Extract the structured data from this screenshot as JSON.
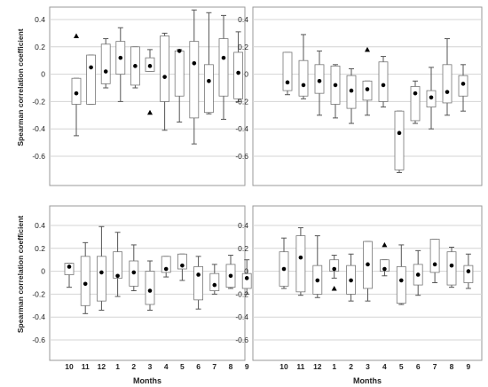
{
  "chart_data": [
    {
      "type": "boxplot",
      "ylabel": "Spearman correlation coefficient",
      "xlabel": "",
      "ylim": [
        -0.8,
        0.5
      ],
      "yticks": [
        0.4,
        0.2,
        0.0,
        -0.2,
        -0.4,
        -0.6
      ],
      "ytick_labels": [
        "0.4",
        "0.2",
        "0",
        "-0.2",
        "-0.4",
        "-0.6"
      ],
      "grid": true,
      "categories": [
        "10",
        "11",
        "12",
        "1",
        "2",
        "3",
        "4",
        "5",
        "6",
        "7",
        "8",
        "9"
      ],
      "show_category_labels": false,
      "boxes": [
        {
          "whisker_low": -0.45,
          "q1": -0.22,
          "q3": -0.03,
          "whisker_high": -0.03,
          "mean": -0.14,
          "outliers": [
            0.28
          ]
        },
        {
          "whisker_low": -0.22,
          "q1": -0.22,
          "q3": 0.14,
          "whisker_high": 0.14,
          "mean": 0.05
        },
        {
          "whisker_low": -0.1,
          "q1": -0.07,
          "q3": 0.22,
          "whisker_high": 0.26,
          "mean": 0.02
        },
        {
          "whisker_low": -0.2,
          "q1": 0.0,
          "q3": 0.24,
          "whisker_high": 0.34,
          "mean": 0.12
        },
        {
          "whisker_low": -0.1,
          "q1": -0.08,
          "q3": 0.2,
          "whisker_high": 0.2,
          "mean": 0.06
        },
        {
          "whisker_low": 0.02,
          "q1": 0.02,
          "q3": 0.12,
          "whisker_high": 0.18,
          "mean": 0.06,
          "outliers": [
            -0.28
          ]
        },
        {
          "whisker_low": -0.41,
          "q1": -0.2,
          "q3": 0.28,
          "whisker_high": 0.3,
          "mean": -0.02
        },
        {
          "whisker_low": -0.35,
          "q1": -0.16,
          "q3": 0.17,
          "whisker_high": 0.18,
          "mean": 0.17
        },
        {
          "whisker_low": -0.51,
          "q1": -0.32,
          "q3": 0.24,
          "whisker_high": 0.47,
          "mean": 0.08
        },
        {
          "whisker_low": -0.29,
          "q1": -0.28,
          "q3": 0.07,
          "whisker_high": 0.45,
          "mean": -0.05
        },
        {
          "whisker_low": -0.33,
          "q1": -0.16,
          "q3": 0.26,
          "whisker_high": 0.43,
          "mean": 0.12
        },
        {
          "whisker_low": -0.2,
          "q1": -0.18,
          "q3": 0.16,
          "whisker_high": 0.31,
          "mean": 0.01
        }
      ]
    },
    {
      "type": "boxplot",
      "ylabel": "",
      "xlabel": "",
      "ylim": [
        -0.8,
        0.5
      ],
      "yticks": [
        0.4,
        0.2,
        0.0,
        -0.2,
        -0.4,
        -0.6
      ],
      "ytick_labels": [
        "0.4",
        "0.2",
        "0",
        "-0.2",
        "-0.4",
        "-0.6"
      ],
      "grid": true,
      "categories": [
        "10",
        "11",
        "12",
        "1",
        "2",
        "3",
        "4",
        "5",
        "6",
        "7",
        "8",
        "9"
      ],
      "show_category_labels": false,
      "boxes": [
        {
          "whisker_low": -0.15,
          "q1": -0.12,
          "q3": 0.16,
          "whisker_high": 0.16,
          "mean": -0.06
        },
        {
          "whisker_low": -0.18,
          "q1": -0.16,
          "q3": 0.1,
          "whisker_high": 0.29,
          "mean": -0.08
        },
        {
          "whisker_low": -0.3,
          "q1": -0.14,
          "q3": 0.07,
          "whisker_high": 0.17,
          "mean": -0.05
        },
        {
          "whisker_low": -0.32,
          "q1": -0.22,
          "q3": 0.06,
          "whisker_high": 0.07,
          "mean": -0.08
        },
        {
          "whisker_low": -0.36,
          "q1": -0.25,
          "q3": -0.01,
          "whisker_high": 0.04,
          "mean": -0.12
        },
        {
          "whisker_low": -0.3,
          "q1": -0.19,
          "q3": -0.05,
          "whisker_high": -0.05,
          "mean": -0.11,
          "outliers": [
            0.18
          ]
        },
        {
          "whisker_low": -0.24,
          "q1": -0.2,
          "q3": 0.09,
          "whisker_high": 0.13,
          "mean": -0.08
        },
        {
          "whisker_low": -0.72,
          "q1": -0.7,
          "q3": -0.27,
          "whisker_high": -0.27,
          "mean": -0.43
        },
        {
          "whisker_low": -0.36,
          "q1": -0.34,
          "q3": -0.09,
          "whisker_high": -0.05,
          "mean": -0.14
        },
        {
          "whisker_low": -0.4,
          "q1": -0.24,
          "q3": -0.12,
          "whisker_high": 0.05,
          "mean": -0.17
        },
        {
          "whisker_low": -0.3,
          "q1": -0.21,
          "q3": 0.07,
          "whisker_high": 0.26,
          "mean": -0.13
        },
        {
          "whisker_low": -0.27,
          "q1": -0.16,
          "q3": -0.01,
          "whisker_high": 0.07,
          "mean": -0.07
        }
      ]
    },
    {
      "type": "boxplot",
      "ylabel": "Spearman correlation coefficient",
      "xlabel": "Months",
      "ylim": [
        -0.75,
        0.5
      ],
      "yticks": [
        0.4,
        0.2,
        0.0,
        -0.2,
        -0.4,
        -0.6
      ],
      "ytick_labels": [
        "0.4",
        "0.2",
        "0",
        "-0.2",
        "-0.4",
        "-0.6"
      ],
      "grid": true,
      "categories": [
        "10",
        "11",
        "12",
        "1",
        "2",
        "3",
        "4",
        "5",
        "6",
        "7",
        "8",
        "9"
      ],
      "show_category_labels": true,
      "boxes": [
        {
          "whisker_low": -0.14,
          "q1": -0.03,
          "q3": 0.07,
          "whisker_high": 0.07,
          "mean": 0.04
        },
        {
          "whisker_low": -0.37,
          "q1": -0.3,
          "q3": 0.13,
          "whisker_high": 0.25,
          "mean": -0.11
        },
        {
          "whisker_low": -0.34,
          "q1": -0.26,
          "q3": 0.13,
          "whisker_high": 0.39,
          "mean": -0.01
        },
        {
          "whisker_low": -0.22,
          "q1": -0.06,
          "q3": 0.17,
          "whisker_high": 0.34,
          "mean": -0.04
        },
        {
          "whisker_low": -0.17,
          "q1": -0.13,
          "q3": 0.09,
          "whisker_high": 0.23,
          "mean": -0.01
        },
        {
          "whisker_low": -0.34,
          "q1": -0.29,
          "q3": 0.0,
          "whisker_high": 0.09,
          "mean": -0.17
        },
        {
          "whisker_low": -0.05,
          "q1": -0.01,
          "q3": 0.13,
          "whisker_high": 0.13,
          "mean": 0.02
        },
        {
          "whisker_low": -0.08,
          "q1": 0.02,
          "q3": 0.15,
          "whisker_high": 0.15,
          "mean": 0.05
        },
        {
          "whisker_low": -0.33,
          "q1": -0.25,
          "q3": 0.04,
          "whisker_high": 0.13,
          "mean": -0.03
        },
        {
          "whisker_low": -0.2,
          "q1": -0.17,
          "q3": -0.02,
          "whisker_high": 0.06,
          "mean": -0.12
        },
        {
          "whisker_low": -0.15,
          "q1": -0.14,
          "q3": 0.06,
          "whisker_high": 0.14,
          "mean": -0.04
        },
        {
          "whisker_low": -0.2,
          "q1": -0.15,
          "q3": -0.02,
          "whisker_high": 0.1,
          "mean": -0.06
        }
      ]
    },
    {
      "type": "boxplot",
      "ylabel": "",
      "xlabel": "Months",
      "ylim": [
        -0.75,
        0.5
      ],
      "yticks": [
        0.4,
        0.2,
        0.0,
        -0.2,
        -0.4,
        -0.6
      ],
      "ytick_labels": [
        "0.4",
        "0.2",
        "0",
        "-0.2",
        "-0.4",
        "-0.6"
      ],
      "grid": true,
      "categories": [
        "10",
        "11",
        "12",
        "1",
        "2",
        "3",
        "4",
        "5",
        "6",
        "7",
        "8",
        "9"
      ],
      "show_category_labels": true,
      "boxes": [
        {
          "whisker_low": -0.15,
          "q1": -0.13,
          "q3": 0.17,
          "whisker_high": 0.29,
          "mean": 0.02
        },
        {
          "whisker_low": -0.21,
          "q1": -0.18,
          "q3": 0.31,
          "whisker_high": 0.38,
          "mean": 0.12
        },
        {
          "whisker_low": -0.23,
          "q1": -0.2,
          "q3": 0.05,
          "whisker_high": 0.31,
          "mean": -0.08
        },
        {
          "whisker_low": -0.06,
          "q1": 0.0,
          "q3": 0.1,
          "whisker_high": 0.14,
          "mean": 0.02,
          "outliers": [
            -0.15
          ]
        },
        {
          "whisker_low": -0.26,
          "q1": -0.2,
          "q3": 0.05,
          "whisker_high": 0.15,
          "mean": -0.08
        },
        {
          "whisker_low": -0.26,
          "q1": -0.15,
          "q3": 0.26,
          "whisker_high": 0.26,
          "mean": 0.06
        },
        {
          "whisker_low": -0.04,
          "q1": 0.0,
          "q3": 0.1,
          "whisker_high": 0.1,
          "mean": 0.02,
          "outliers": [
            0.23
          ]
        },
        {
          "whisker_low": -0.29,
          "q1": -0.28,
          "q3": 0.04,
          "whisker_high": 0.23,
          "mean": -0.08
        },
        {
          "whisker_low": -0.21,
          "q1": -0.12,
          "q3": 0.06,
          "whisker_high": 0.18,
          "mean": -0.03
        },
        {
          "whisker_low": -0.1,
          "q1": -0.01,
          "q3": 0.28,
          "whisker_high": 0.28,
          "mean": 0.06
        },
        {
          "whisker_low": -0.14,
          "q1": -0.12,
          "q3": 0.17,
          "whisker_high": 0.21,
          "mean": 0.05
        },
        {
          "whisker_low": -0.15,
          "q1": -0.1,
          "q3": 0.05,
          "whisker_high": 0.15,
          "mean": 0.0
        }
      ]
    }
  ]
}
